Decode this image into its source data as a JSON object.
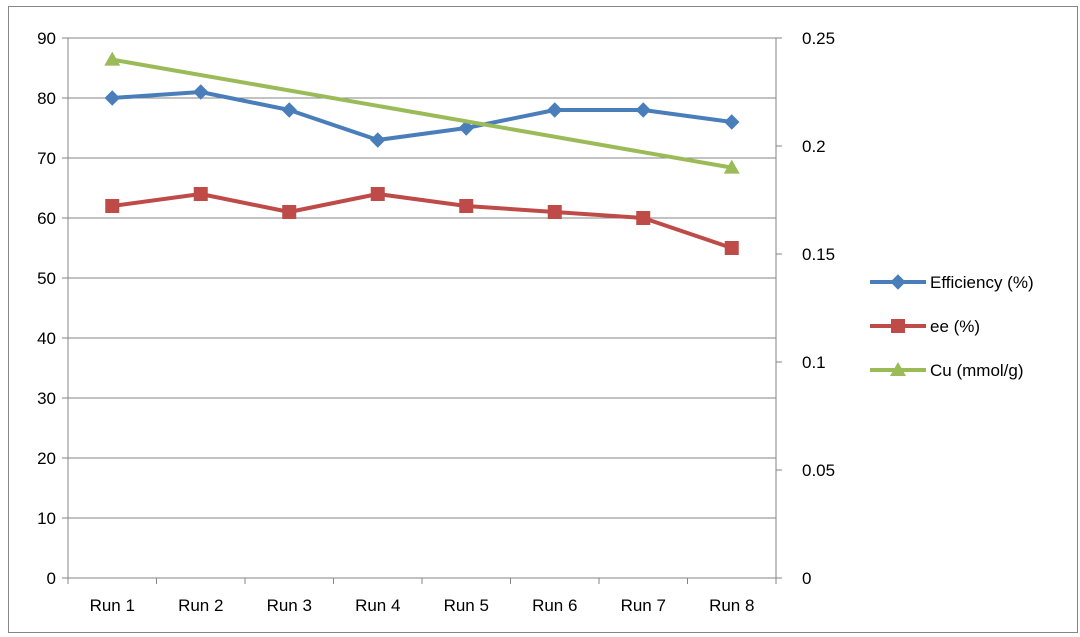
{
  "chart_data": {
    "type": "line",
    "categories": [
      "Run 1",
      "Run 2",
      "Run 3",
      "Run 4",
      "Run 5",
      "Run 6",
      "Run 7",
      "Run 8"
    ],
    "title": "",
    "xlabel": "",
    "ylabel": "",
    "y_left": {
      "min": 0,
      "max": 90,
      "step": 10,
      "ticks": [
        "0",
        "10",
        "20",
        "30",
        "40",
        "50",
        "60",
        "70",
        "80",
        "90"
      ]
    },
    "y_right": {
      "min": 0,
      "max": 0.25,
      "step": 0.05,
      "ticks": [
        "0",
        "0.05",
        "0.1",
        "0.15",
        "0.2",
        "0.25"
      ]
    },
    "grid": true,
    "legend_position": "right",
    "series": [
      {
        "name": "Efficiency (%)",
        "axis": "left",
        "marker": "diamond",
        "color": "#4a7ebb",
        "values": [
          80,
          81,
          78,
          73,
          75,
          78,
          78,
          76
        ]
      },
      {
        "name": "ee (%)",
        "axis": "left",
        "marker": "square",
        "color": "#be4b48",
        "values": [
          62,
          64,
          61,
          64,
          62,
          61,
          60,
          55
        ]
      },
      {
        "name": "Cu (mmol/g)",
        "axis": "right",
        "marker": "triangle",
        "color": "#9bbb59",
        "values": [
          0.24,
          null,
          null,
          null,
          null,
          null,
          null,
          0.19
        ]
      }
    ]
  }
}
